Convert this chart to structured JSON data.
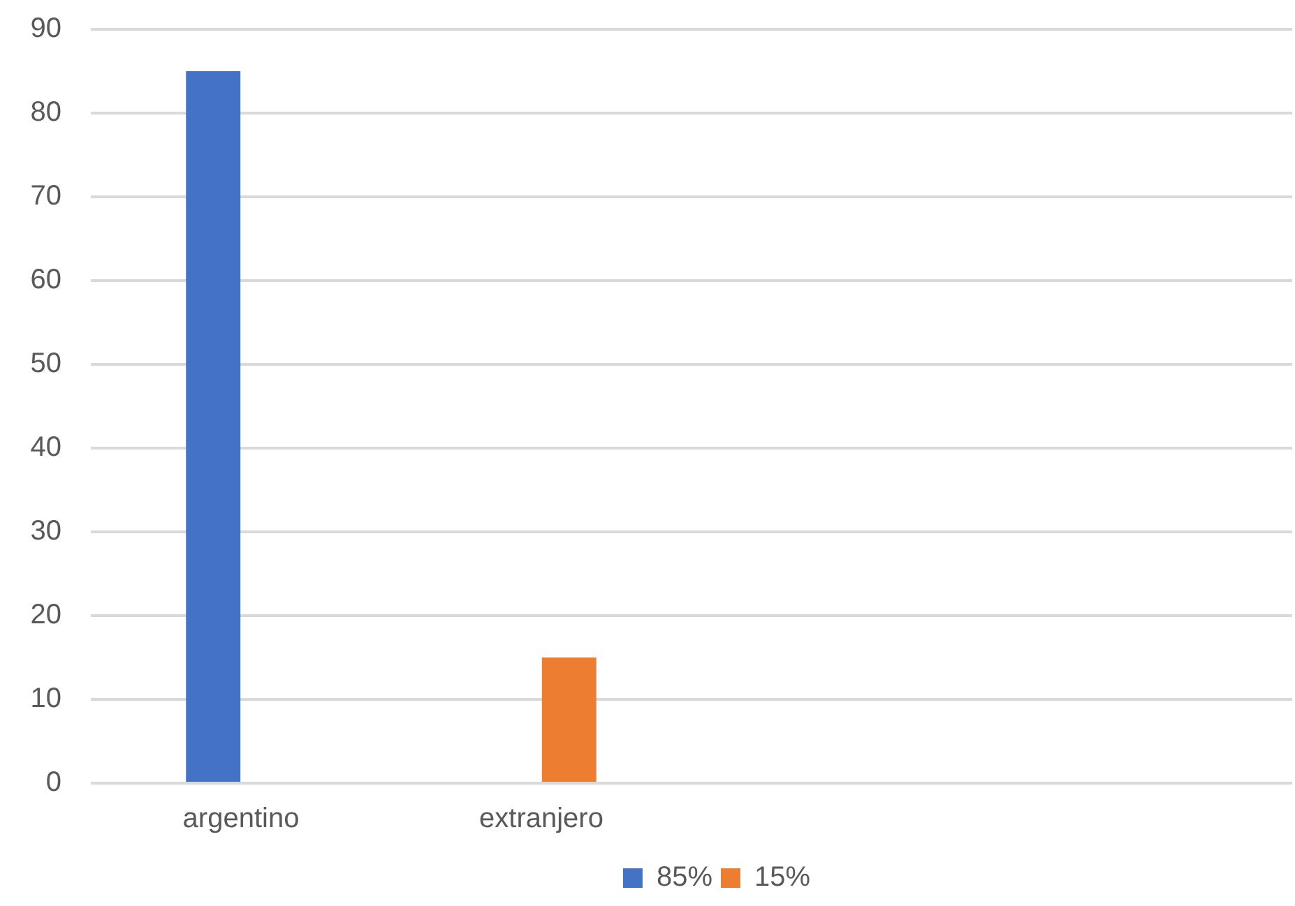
{
  "chart_data": {
    "type": "bar",
    "categories": [
      "argentino",
      "extranjero",
      null,
      null
    ],
    "series": [
      {
        "name": "85%",
        "color": "#4472c4",
        "values": [
          85,
          null,
          null,
          null
        ]
      },
      {
        "name": "15%",
        "color": "#ed7d31",
        "values": [
          null,
          15,
          null,
          null
        ]
      }
    ],
    "ylim": [
      0,
      90
    ],
    "yticks": [
      0,
      10,
      20,
      30,
      40,
      50,
      60,
      70,
      80,
      90
    ],
    "grid": "y",
    "legend": "bottom"
  }
}
